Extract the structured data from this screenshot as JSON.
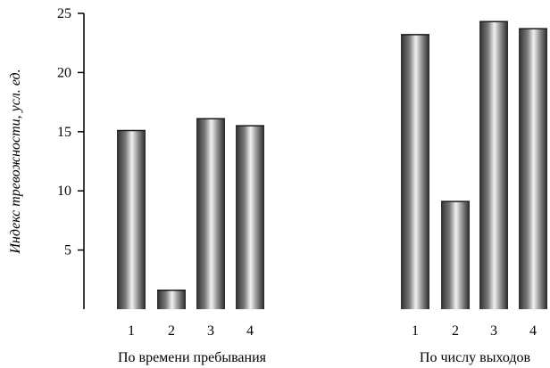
{
  "chart_data": {
    "type": "bar",
    "ylabel": "Индекс тревожности, усл. ед.",
    "ylim": [
      0,
      25
    ],
    "yticks": [
      "5",
      "10",
      "15",
      "20",
      "25"
    ],
    "groups": [
      {
        "label": "По времени пребывания",
        "categories": [
          "1",
          "2",
          "3",
          "4"
        ],
        "values": [
          15.1,
          1.6,
          16.1,
          15.5
        ]
      },
      {
        "label": "По числу выходов",
        "categories": [
          "1",
          "2",
          "3",
          "4"
        ],
        "values": [
          23.2,
          9.1,
          24.3,
          23.7
        ]
      }
    ],
    "grid": false,
    "legend": "none"
  }
}
